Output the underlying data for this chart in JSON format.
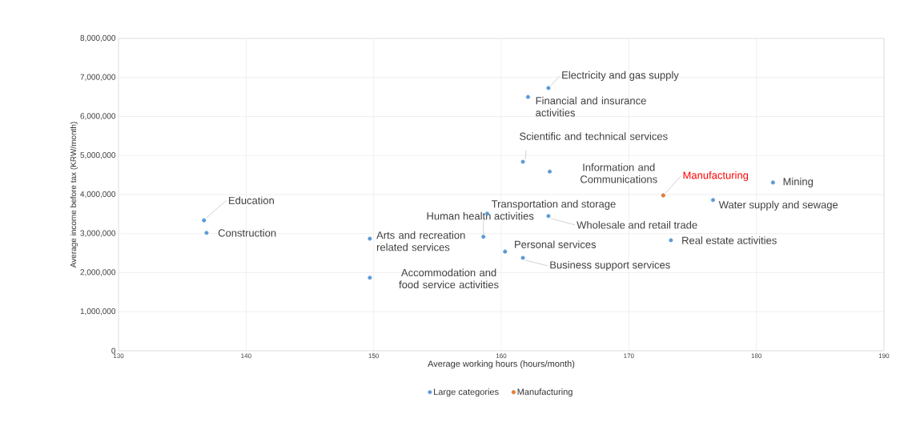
{
  "chart_data": {
    "type": "scatter",
    "xlabel": "Average working hours (hours/month)",
    "ylabel": "Average income before tax (KRW/month)",
    "xlim": [
      130,
      190
    ],
    "xticks": [
      130,
      140,
      150,
      160,
      170,
      180,
      190
    ],
    "ylim": [
      0,
      8000000
    ],
    "yticks": [
      0,
      {
        "value": 1000000,
        "label": "1,000,000"
      },
      {
        "value": 2000000,
        "label": "2,000,000"
      },
      {
        "value": 3000000,
        "label": "3,000,000"
      },
      {
        "value": 4000000,
        "label": "4,000,000"
      },
      {
        "value": 5000000,
        "label": "5,000,000"
      },
      {
        "value": 6000000,
        "label": "6,000,000"
      },
      {
        "value": 7000000,
        "label": "7,000,000"
      },
      {
        "value": 8000000,
        "label": "8,000,000"
      }
    ],
    "grid": true,
    "legend": "bottom",
    "marker": "circle",
    "series": [
      {
        "name": "Large categories",
        "color": "#5b9bd5",
        "x": [
          163.7,
          162.1,
          161.7,
          163.8,
          181.3,
          176.6,
          158.9,
          158.6,
          163.7,
          149.7,
          149.7,
          160.3,
          161.7,
          173.3,
          136.7,
          136.9
        ],
        "values": [
          6730000,
          6500000,
          4840000,
          4590000,
          4310000,
          3860000,
          3510000,
          2920000,
          3450000,
          2870000,
          1870000,
          2540000,
          2380000,
          2830000,
          3340000,
          3020000
        ]
      },
      {
        "name": "Manufacturing",
        "color": "#ed7d31",
        "x": [
          172.7
        ],
        "values": [
          3980000
        ]
      }
    ],
    "annotations": [
      {
        "text": "Electricity and gas supply",
        "x": 163.7,
        "y": 6730000
      },
      {
        "text": "Financial and insurance activities",
        "x": 162.1,
        "y": 6500000
      },
      {
        "text": "Scientific and technical services",
        "x": 161.7,
        "y": 4840000
      },
      {
        "text": "Information and Communications",
        "x": 163.8,
        "y": 4590000
      },
      {
        "text": "Manufacturing",
        "x": 172.7,
        "y": 3980000
      },
      {
        "text": "Mining",
        "x": 181.3,
        "y": 4310000
      },
      {
        "text": "Water supply and sewage",
        "x": 176.6,
        "y": 3860000
      },
      {
        "text": "Transportation and storage",
        "x": 158.9,
        "y": 3510000
      },
      {
        "text": "Human health activities",
        "x": 158.6,
        "y": 2920000
      },
      {
        "text": "Wholesale and retail trade",
        "x": 163.7,
        "y": 3450000
      },
      {
        "text": "Arts and recreation related services",
        "x": 149.7,
        "y": 2870000
      },
      {
        "text": "Accommodation and food service activities",
        "x": 149.7,
        "y": 1870000
      },
      {
        "text": "Personal services",
        "x": 160.3,
        "y": 2540000
      },
      {
        "text": "Business support services",
        "x": 161.7,
        "y": 2380000
      },
      {
        "text": "Real estate activities",
        "x": 173.3,
        "y": 2830000
      },
      {
        "text": "Education",
        "x": 136.7,
        "y": 3340000
      },
      {
        "text": "Construction",
        "x": 136.9,
        "y": 3020000
      }
    ]
  }
}
